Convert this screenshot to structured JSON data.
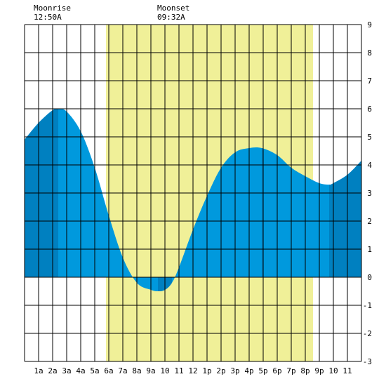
{
  "annotations": {
    "moonrise": {
      "label": "Moonrise",
      "time": "12:50A",
      "hour": 0.833
    },
    "moonset": {
      "label": "Moonset",
      "time": "09:32A",
      "hour": 9.533
    }
  },
  "chart_data": {
    "type": "area",
    "title": "",
    "xlabel": "",
    "ylabel": "",
    "xlim": [
      0,
      24
    ],
    "ylim": [
      -3,
      9
    ],
    "grid": true,
    "x_tick_labels": [
      {
        "hour": 1,
        "label": "1a"
      },
      {
        "hour": 2,
        "label": "2a"
      },
      {
        "hour": 3,
        "label": "3a"
      },
      {
        "hour": 4,
        "label": "4a"
      },
      {
        "hour": 5,
        "label": "5a"
      },
      {
        "hour": 6,
        "label": "6a"
      },
      {
        "hour": 7,
        "label": "7a"
      },
      {
        "hour": 8,
        "label": "8a"
      },
      {
        "hour": 9,
        "label": "9a"
      },
      {
        "hour": 10,
        "label": "10"
      },
      {
        "hour": 11,
        "label": "11"
      },
      {
        "hour": 12,
        "label": "12"
      },
      {
        "hour": 13,
        "label": "1p"
      },
      {
        "hour": 14,
        "label": "2p"
      },
      {
        "hour": 15,
        "label": "3p"
      },
      {
        "hour": 16,
        "label": "4p"
      },
      {
        "hour": 17,
        "label": "5p"
      },
      {
        "hour": 18,
        "label": "6p"
      },
      {
        "hour": 19,
        "label": "7p"
      },
      {
        "hour": 20,
        "label": "8p"
      },
      {
        "hour": 21,
        "label": "9p"
      },
      {
        "hour": 22,
        "label": "10"
      },
      {
        "hour": 23,
        "label": "11"
      }
    ],
    "y_ticks": [
      -3,
      -2,
      -1,
      0,
      1,
      2,
      3,
      4,
      5,
      6,
      7,
      8,
      9
    ],
    "daylight": {
      "start": 5.8,
      "end": 20.55,
      "color": "#f0f098"
    },
    "tide": {
      "x": [
        0,
        1,
        2,
        2.4,
        3,
        4,
        5,
        6,
        7,
        8,
        9,
        9.5,
        10,
        10.5,
        11,
        12,
        13,
        14,
        15,
        16,
        16.9,
        18,
        19,
        20,
        21,
        21.7,
        22,
        23,
        24
      ],
      "y": [
        4.9,
        5.5,
        5.95,
        6.0,
        5.9,
        5.2,
        3.9,
        2.2,
        0.7,
        -0.2,
        -0.45,
        -0.5,
        -0.45,
        -0.2,
        0.35,
        1.7,
        2.9,
        3.9,
        4.45,
        4.6,
        4.6,
        4.35,
        3.9,
        3.6,
        3.35,
        3.3,
        3.35,
        3.65,
        4.15
      ],
      "color": "#0099dd",
      "highlight_color": "#0080c0",
      "highlight_hours": [
        [
          0,
          2.4
        ],
        [
          9.5,
          10.5
        ],
        [
          16.9,
          17.0
        ],
        [
          21.7,
          24
        ]
      ]
    }
  }
}
